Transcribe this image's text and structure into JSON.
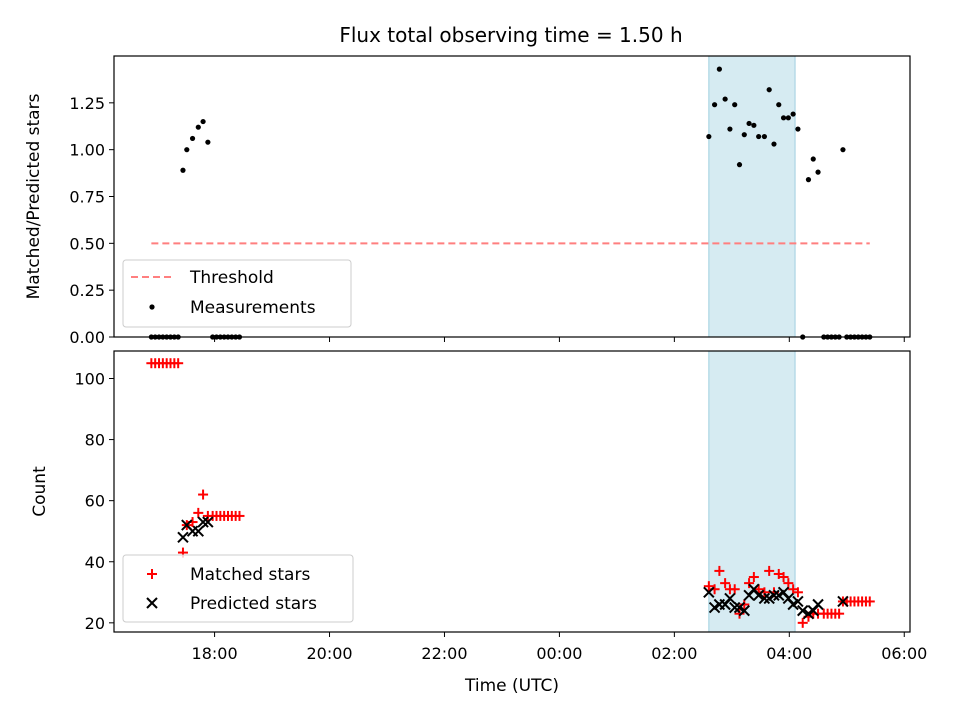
{
  "chart_data": [
    {
      "type": "scatter",
      "panel": "top",
      "title": "Flux total observing time = 1.50 h",
      "ylabel": "Matched/Predicted stars",
      "xlabel": "",
      "ylim": [
        0,
        1.5
      ],
      "yticks": [
        "0.00",
        "0.25",
        "0.50",
        "0.75",
        "1.00",
        "1.25"
      ],
      "yticks_values": [
        0,
        0.25,
        0.5,
        0.75,
        1.0,
        1.25
      ],
      "xlim_hours_since_1600": [
        0.25,
        14.1
      ],
      "highlight_span": [
        "02:36",
        "04:06"
      ],
      "grid": false,
      "legend_position": "lower-left",
      "threshold": {
        "name": "Threshold",
        "value": 0.5,
        "x_range": [
          "16:54",
          "05:24"
        ],
        "color": "#ff7f7f",
        "style": "dashed"
      },
      "series": [
        {
          "name": "Measurements",
          "color": "#000000",
          "marker": "dot",
          "points": [
            [
              "16:54",
              0.0
            ],
            [
              "16:58",
              0.0
            ],
            [
              "17:02",
              0.0
            ],
            [
              "17:06",
              0.0
            ],
            [
              "17:10",
              0.0
            ],
            [
              "17:14",
              0.0
            ],
            [
              "17:18",
              0.0
            ],
            [
              "17:22",
              0.0
            ],
            [
              "17:27",
              0.89
            ],
            [
              "17:31",
              1.0
            ],
            [
              "17:37",
              1.06
            ],
            [
              "17:43",
              1.12
            ],
            [
              "17:48",
              1.15
            ],
            [
              "17:53",
              1.04
            ],
            [
              "17:58",
              0.0
            ],
            [
              "18:02",
              0.0
            ],
            [
              "18:06",
              0.0
            ],
            [
              "18:10",
              0.0
            ],
            [
              "18:14",
              0.0
            ],
            [
              "18:18",
              0.0
            ],
            [
              "18:22",
              0.0
            ],
            [
              "18:26",
              0.0
            ],
            [
              "02:36",
              1.07
            ],
            [
              "02:42",
              1.24
            ],
            [
              "02:47",
              1.43
            ],
            [
              "02:53",
              1.27
            ],
            [
              "02:58",
              1.11
            ],
            [
              "03:03",
              1.24
            ],
            [
              "03:08",
              0.92
            ],
            [
              "03:13",
              1.08
            ],
            [
              "03:18",
              1.14
            ],
            [
              "03:23",
              1.13
            ],
            [
              "03:28",
              1.07
            ],
            [
              "03:34",
              1.07
            ],
            [
              "03:39",
              1.32
            ],
            [
              "03:44",
              1.03
            ],
            [
              "03:49",
              1.24
            ],
            [
              "03:54",
              1.17
            ],
            [
              "03:59",
              1.17
            ],
            [
              "04:04",
              1.19
            ],
            [
              "04:09",
              1.11
            ],
            [
              "04:14",
              0.0
            ],
            [
              "04:20",
              0.84
            ],
            [
              "04:25",
              0.95
            ],
            [
              "04:30",
              0.88
            ],
            [
              "04:36",
              0.0
            ],
            [
              "04:40",
              0.0
            ],
            [
              "04:44",
              0.0
            ],
            [
              "04:48",
              0.0
            ],
            [
              "04:52",
              0.0
            ],
            [
              "04:56",
              1.0
            ],
            [
              "05:00",
              0.0
            ],
            [
              "05:04",
              0.0
            ],
            [
              "05:08",
              0.0
            ],
            [
              "05:12",
              0.0
            ],
            [
              "05:16",
              0.0
            ],
            [
              "05:20",
              0.0
            ],
            [
              "05:24",
              0.0
            ]
          ]
        }
      ]
    },
    {
      "type": "scatter",
      "panel": "bottom",
      "title": "",
      "ylabel": "Count",
      "xlabel": "Time (UTC)",
      "ylim": [
        17,
        109
      ],
      "yticks": [
        "20",
        "40",
        "60",
        "80",
        "100"
      ],
      "yticks_values": [
        20,
        40,
        60,
        80,
        100
      ],
      "xticks": [
        "18:00",
        "20:00",
        "22:00",
        "00:00",
        "02:00",
        "04:00",
        "06:00"
      ],
      "xticks_hours_since_1600": [
        2,
        4,
        6,
        8,
        10,
        12,
        14
      ],
      "xlim_hours_since_1600": [
        0.25,
        14.1
      ],
      "highlight_span": [
        "02:36",
        "04:06"
      ],
      "grid": false,
      "legend_position": "lower-left",
      "series": [
        {
          "name": "Matched stars",
          "color": "#ff0000",
          "marker": "plus",
          "points": [
            [
              "16:54",
              105
            ],
            [
              "16:58",
              105
            ],
            [
              "17:02",
              105
            ],
            [
              "17:06",
              105
            ],
            [
              "17:10",
              105
            ],
            [
              "17:14",
              105
            ],
            [
              "17:18",
              105
            ],
            [
              "17:22",
              105
            ],
            [
              "17:27",
              43
            ],
            [
              "17:31",
              52
            ],
            [
              "17:37",
              53
            ],
            [
              "17:43",
              56
            ],
            [
              "17:48",
              62
            ],
            [
              "17:53",
              55
            ],
            [
              "17:58",
              55
            ],
            [
              "18:02",
              55
            ],
            [
              "18:06",
              55
            ],
            [
              "18:10",
              55
            ],
            [
              "18:14",
              55
            ],
            [
              "18:18",
              55
            ],
            [
              "18:22",
              55
            ],
            [
              "18:26",
              55
            ],
            [
              "02:36",
              32
            ],
            [
              "02:42",
              31
            ],
            [
              "02:47",
              37
            ],
            [
              "02:53",
              33
            ],
            [
              "02:58",
              31
            ],
            [
              "03:03",
              31
            ],
            [
              "03:08",
              23
            ],
            [
              "03:13",
              26
            ],
            [
              "03:18",
              33
            ],
            [
              "03:23",
              35
            ],
            [
              "03:28",
              31
            ],
            [
              "03:34",
              30
            ],
            [
              "03:39",
              37
            ],
            [
              "03:44",
              30
            ],
            [
              "03:49",
              36
            ],
            [
              "03:54",
              35
            ],
            [
              "03:59",
              33
            ],
            [
              "04:04",
              31
            ],
            [
              "04:09",
              30
            ],
            [
              "04:14",
              20
            ],
            [
              "04:20",
              22
            ],
            [
              "04:25",
              23
            ],
            [
              "04:30",
              23
            ],
            [
              "04:36",
              23
            ],
            [
              "04:40",
              23
            ],
            [
              "04:44",
              23
            ],
            [
              "04:48",
              23
            ],
            [
              "04:52",
              23
            ],
            [
              "04:56",
              27
            ],
            [
              "05:00",
              27
            ],
            [
              "05:04",
              27
            ],
            [
              "05:08",
              27
            ],
            [
              "05:12",
              27
            ],
            [
              "05:16",
              27
            ],
            [
              "05:20",
              27
            ],
            [
              "05:24",
              27
            ]
          ]
        },
        {
          "name": "Predicted stars",
          "color": "#000000",
          "marker": "x",
          "points": [
            [
              "17:27",
              48
            ],
            [
              "17:31",
              52
            ],
            [
              "17:37",
              50
            ],
            [
              "17:43",
              50
            ],
            [
              "17:48",
              53
            ],
            [
              "17:53",
              53
            ],
            [
              "02:36",
              30
            ],
            [
              "02:42",
              25
            ],
            [
              "02:47",
              26
            ],
            [
              "02:53",
              26
            ],
            [
              "02:58",
              28
            ],
            [
              "03:03",
              25
            ],
            [
              "03:08",
              25
            ],
            [
              "03:13",
              24
            ],
            [
              "03:18",
              29
            ],
            [
              "03:23",
              31
            ],
            [
              "03:28",
              29
            ],
            [
              "03:34",
              28
            ],
            [
              "03:39",
              28
            ],
            [
              "03:44",
              29
            ],
            [
              "03:49",
              29
            ],
            [
              "03:54",
              30
            ],
            [
              "03:59",
              28
            ],
            [
              "04:04",
              26
            ],
            [
              "04:09",
              27
            ],
            [
              "04:14",
              24
            ],
            [
              "04:20",
              23
            ],
            [
              "04:25",
              24
            ],
            [
              "04:30",
              26
            ],
            [
              "04:56",
              27
            ]
          ]
        }
      ]
    }
  ]
}
